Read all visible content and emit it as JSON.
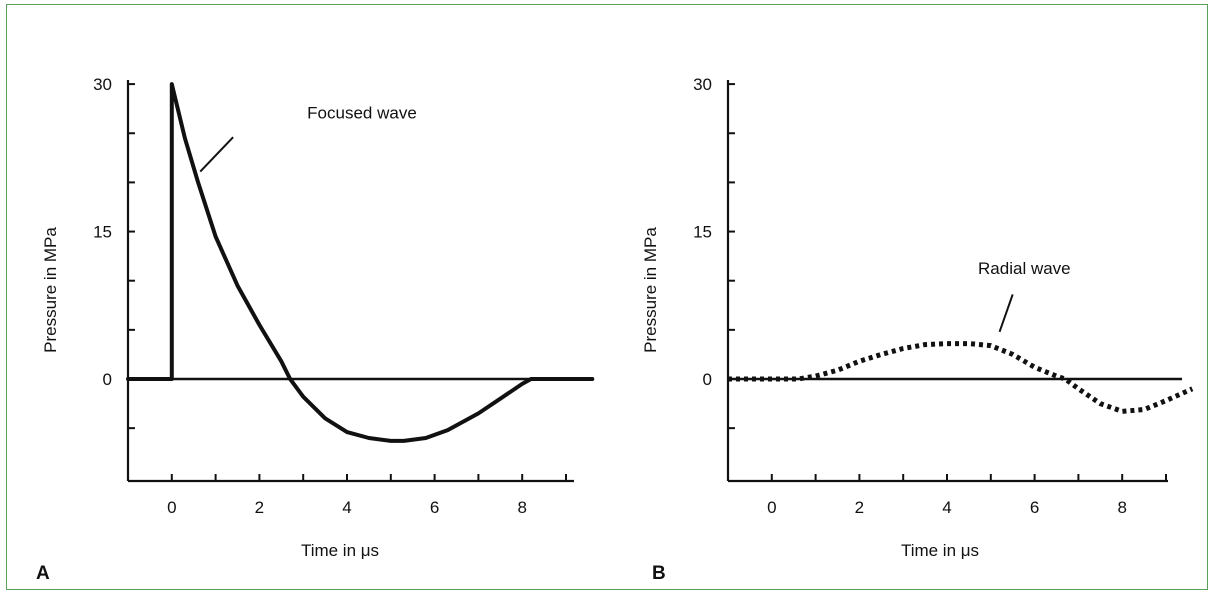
{
  "chart_data": [
    {
      "panel": "A",
      "type": "line",
      "xlabel": "Time in μs",
      "ylabel": "Pressure in MPa",
      "xlim": [
        -1,
        9.6
      ],
      "ylim": [
        -10,
        30
      ],
      "xticks": [
        0,
        2,
        4,
        6,
        8
      ],
      "yticks": [
        0,
        15,
        30
      ],
      "style": "solid",
      "annotation": {
        "text": "Focused wave",
        "x": 2.2,
        "y": 27
      },
      "series": [
        {
          "x": [
            -1,
            0,
            0,
            0.3,
            0.6,
            1,
            1.5,
            2,
            2.5,
            2.7,
            3,
            3.5,
            4,
            4.5,
            5,
            5.3,
            5.8,
            6.3,
            7,
            7.5,
            8,
            8.2,
            9.6
          ],
          "y": [
            0,
            0,
            30,
            24.5,
            20,
            14.5,
            9.5,
            5.5,
            1.8,
            0,
            -1.8,
            -4,
            -5.4,
            -6,
            -6.3,
            -6.3,
            -6,
            -5.2,
            -3.5,
            -2,
            -0.5,
            0,
            0
          ]
        }
      ]
    },
    {
      "panel": "B",
      "type": "line",
      "xlabel": "Time in μs",
      "ylabel": "Pressure in MPa",
      "xlim": [
        -1,
        9.6
      ],
      "ylim": [
        -10,
        30
      ],
      "xticks": [
        0,
        2,
        4,
        6,
        8
      ],
      "yticks": [
        0,
        15,
        30
      ],
      "style": "dotted",
      "annotation": {
        "text": "Radial wave",
        "x": 4.8,
        "y": 11.2
      },
      "series": [
        {
          "x": [
            -1,
            0.6,
            1,
            1.5,
            2,
            2.5,
            3,
            3.5,
            4,
            4.5,
            5,
            5.5,
            6,
            6.5,
            6.7,
            7,
            7.5,
            8,
            8.5,
            9,
            9.6
          ],
          "y": [
            0,
            0,
            0.3,
            0.9,
            1.8,
            2.5,
            3.1,
            3.5,
            3.6,
            3.6,
            3.4,
            2.5,
            1.2,
            0.3,
            0,
            -1,
            -2.5,
            -3.3,
            -3.1,
            -2.2,
            -1
          ]
        }
      ]
    }
  ],
  "panel_labels": {
    "a": "A",
    "b": "B"
  }
}
